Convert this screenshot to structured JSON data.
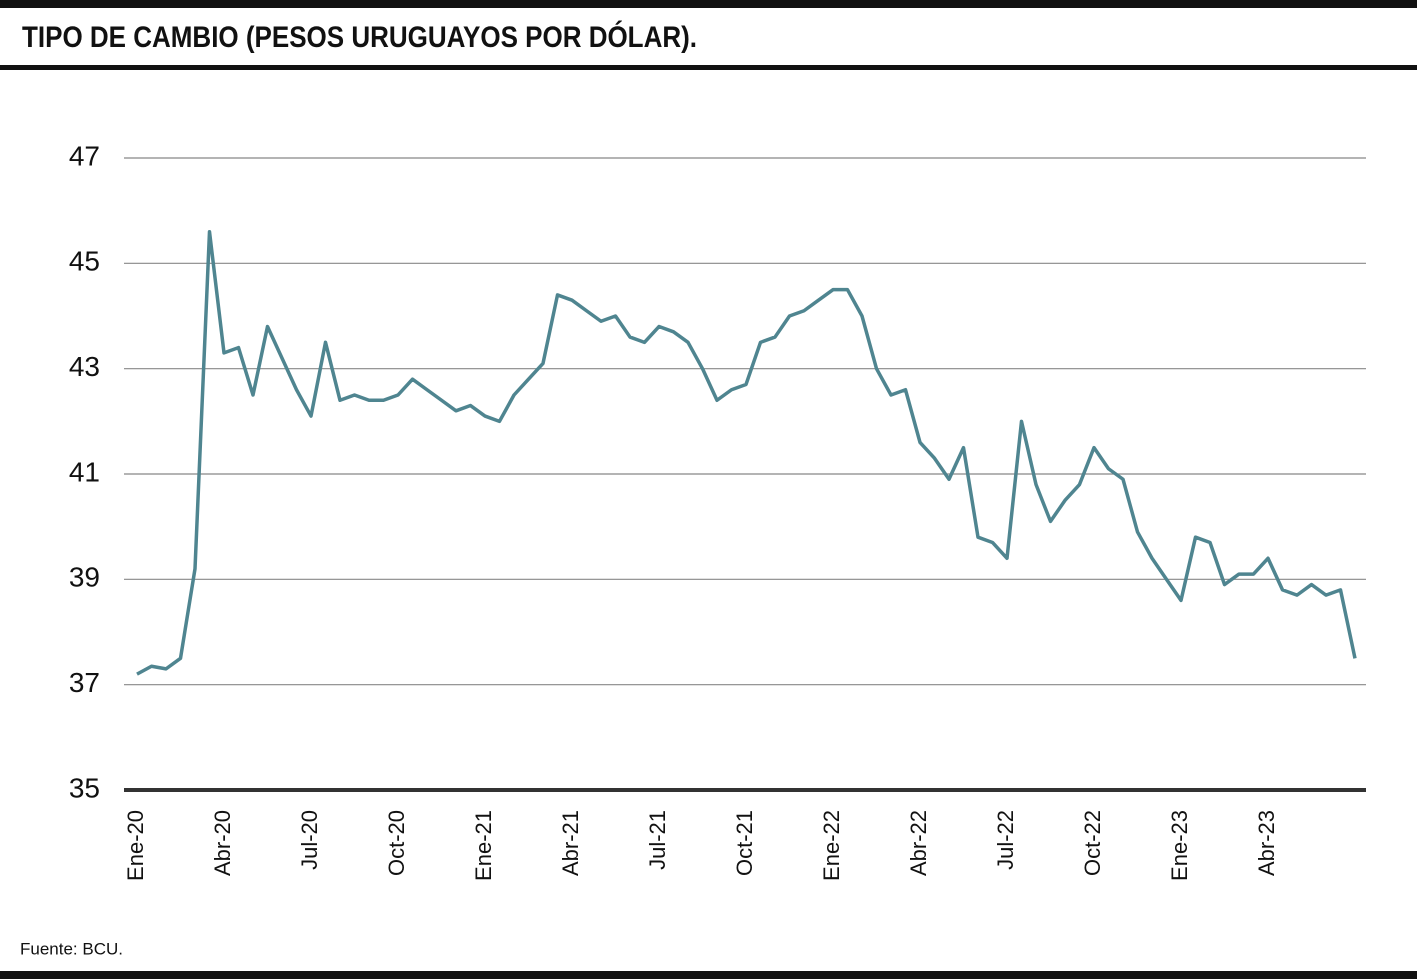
{
  "chart_data": {
    "type": "line",
    "title": "TIPO DE CAMBIO (PESOS URUGUAYOS POR DÓLAR).",
    "source": "Fuente: BCU.",
    "categories": [
      "Ene-20",
      null,
      null,
      null,
      null,
      null,
      "Abr-20",
      null,
      null,
      null,
      null,
      null,
      "Jul-20",
      null,
      null,
      null,
      null,
      null,
      "Oct-20",
      null,
      null,
      null,
      null,
      null,
      "Ene-21",
      null,
      null,
      null,
      null,
      null,
      "Abr-21",
      null,
      null,
      null,
      null,
      null,
      "Jul-21",
      null,
      null,
      null,
      null,
      null,
      "Oct-21",
      null,
      null,
      null,
      null,
      null,
      "Ene-22",
      null,
      null,
      null,
      null,
      null,
      "Abr-22",
      null,
      null,
      null,
      null,
      null,
      "Jul-22",
      null,
      null,
      null,
      null,
      null,
      "Oct-22",
      null,
      null,
      null,
      null,
      null,
      "Ene-23",
      null,
      null,
      null,
      null,
      null,
      "Abr-23",
      null,
      null,
      null,
      null,
      null,
      null
    ],
    "values": [
      37.2,
      37.35,
      37.3,
      37.5,
      39.2,
      45.6,
      43.3,
      43.4,
      42.5,
      43.8,
      43.2,
      42.6,
      42.1,
      43.5,
      42.4,
      42.5,
      42.4,
      42.4,
      42.5,
      42.8,
      42.6,
      42.4,
      42.2,
      42.3,
      42.1,
      42.0,
      42.5,
      42.8,
      43.1,
      44.4,
      44.3,
      44.1,
      43.9,
      44.0,
      43.6,
      43.5,
      43.8,
      43.7,
      43.5,
      43.0,
      42.4,
      42.6,
      42.7,
      43.5,
      43.6,
      44.0,
      44.1,
      44.3,
      44.5,
      44.5,
      44.0,
      43.0,
      42.5,
      42.6,
      41.6,
      41.3,
      40.9,
      41.5,
      39.8,
      39.7,
      39.4,
      42.0,
      40.8,
      40.1,
      40.5,
      40.8,
      41.5,
      41.1,
      40.9,
      39.9,
      39.4,
      39.0,
      38.6,
      39.8,
      39.7,
      38.9,
      39.1,
      39.1,
      39.4,
      38.8,
      38.7,
      38.9,
      38.7,
      38.8,
      37.5
    ],
    "color": "#4f8590",
    "ylim": [
      35,
      47
    ],
    "yticks": [
      35,
      37,
      39,
      41,
      43,
      45,
      47
    ],
    "grid": true
  }
}
